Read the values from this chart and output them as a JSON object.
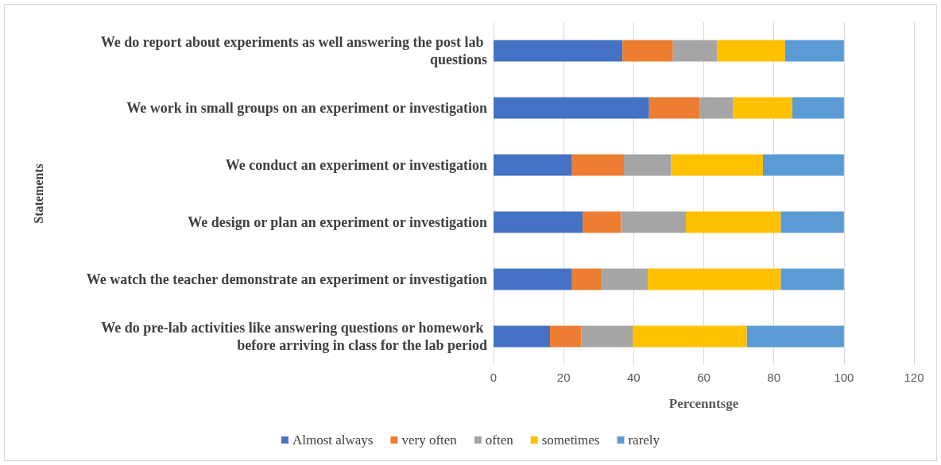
{
  "chart_data": {
    "type": "bar",
    "orientation": "horizontal",
    "stacked": true,
    "xlabel": "Percenntsge",
    "ylabel": "Statements",
    "categories": [
      "We do report about experiments as well answering the post lab questions",
      "We work in small groups on an experiment or investigation",
      "We conduct an experiment or investigation",
      "We design or plan an experiment or investigation",
      "We watch the teacher demonstrate an experiment or investigation",
      "We do pre-lab activities like answering questions or homework before arriving in class for the lab period"
    ],
    "series": [
      {
        "name": "Almost always",
        "color": "#4472c4",
        "values": [
          36.8,
          44.4,
          22.4,
          25.4,
          22.4,
          16.1
        ]
      },
      {
        "name": "very often",
        "color": "#ed7d31",
        "values": [
          14.4,
          14.4,
          14.8,
          11.0,
          8.5,
          8.9
        ]
      },
      {
        "name": "often",
        "color": "#a5a5a5",
        "values": [
          12.6,
          9.6,
          13.5,
          18.5,
          13.1,
          14.7
        ]
      },
      {
        "name": "sometimes",
        "color": "#ffc000",
        "values": [
          19.4,
          16.9,
          26.2,
          27.1,
          38.0,
          32.6
        ]
      },
      {
        "name": "rarely",
        "color": "#5b9bd5",
        "values": [
          16.8,
          14.7,
          23.1,
          18.0,
          18.0,
          27.7
        ]
      }
    ],
    "xlim": [
      0,
      120
    ],
    "xticks": [
      0,
      20,
      40,
      60,
      80,
      100,
      120
    ],
    "grid": "x",
    "legend": "bottom"
  }
}
